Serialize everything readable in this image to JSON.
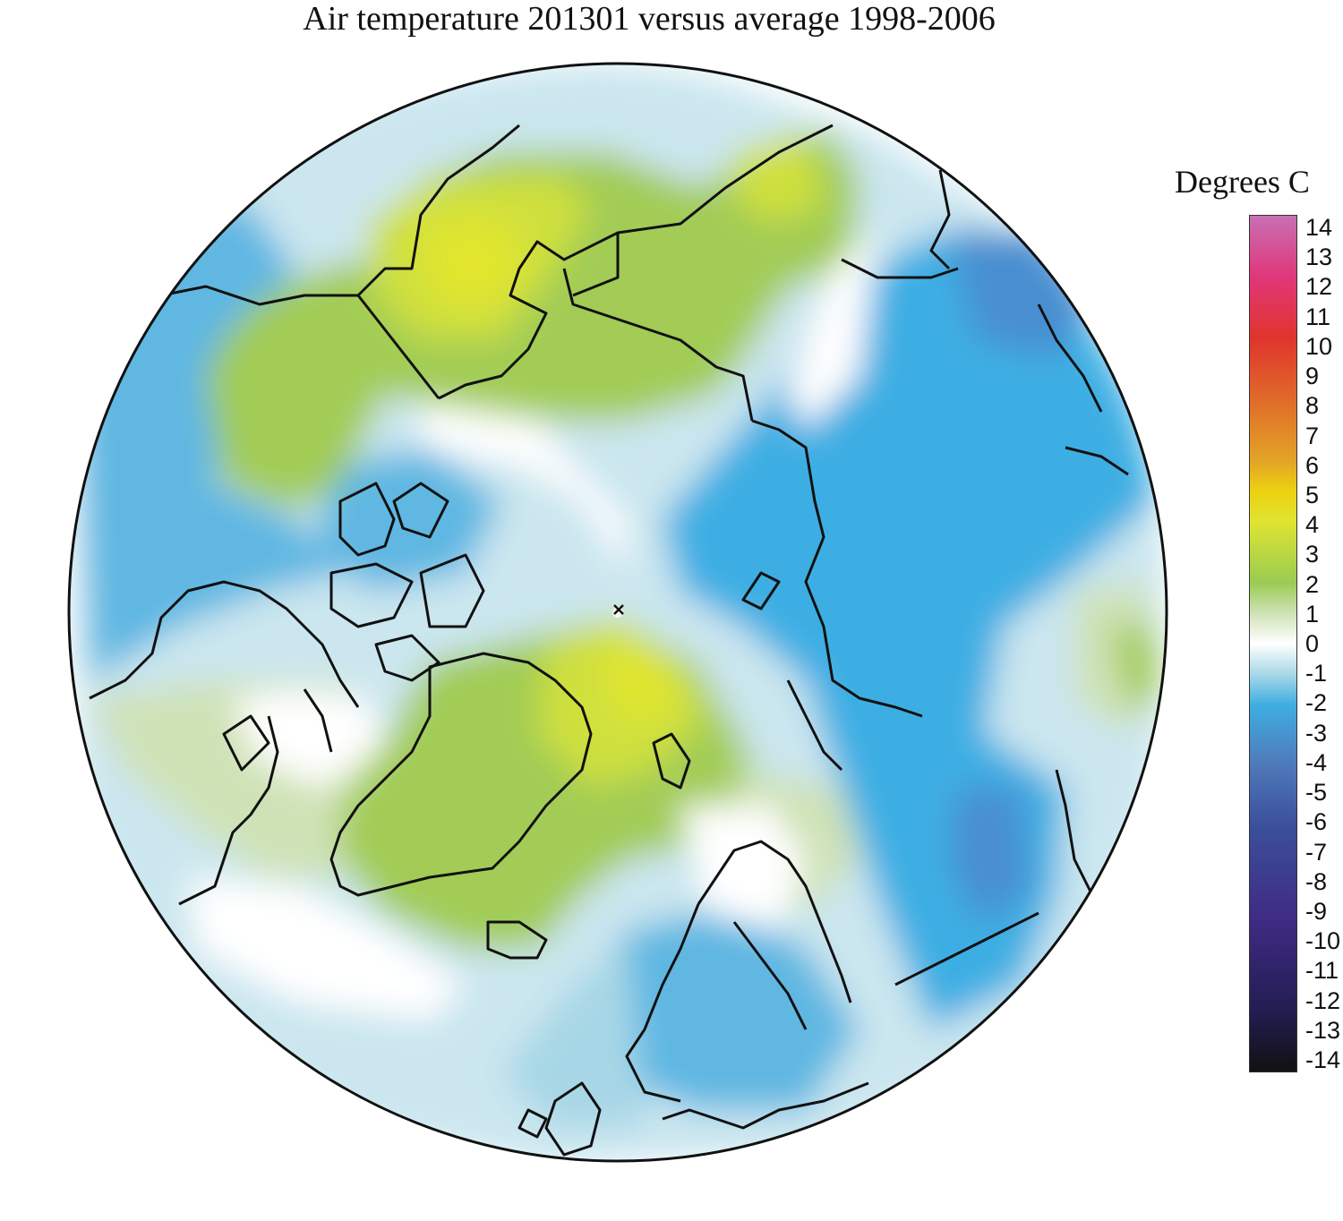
{
  "title": "Air temperature 201301 versus average 1998-2006",
  "legend": {
    "title": "Degrees C",
    "ticks": [
      "14",
      "13",
      "12",
      "11",
      "10",
      "9",
      "8",
      "7",
      "6",
      "5",
      "4",
      "3",
      "2",
      "1",
      "0",
      "-1",
      "-2",
      "-3",
      "-4",
      "-5",
      "-6",
      "-7",
      "-8",
      "-9",
      "-10",
      "-11",
      "-12",
      "-13",
      "-14"
    ],
    "colors": {
      "14": "#c86fb4",
      "12": "#e0377a",
      "10": "#e0342c",
      "8": "#e06a2a",
      "6": "#e2a327",
      "5": "#ecd10f",
      "4": "#e0e431",
      "2": "#9acb52",
      "1": "#cfe2b6",
      "0": "#ffffff",
      "-1": "#a8d8e7",
      "-2": "#3faee2",
      "-4": "#4f78b9",
      "-6": "#3b4f9a",
      "-9": "#3f2b84",
      "-12": "#231d52",
      "-14": "#111111"
    }
  },
  "map_colors": {
    "background": "#ffffff",
    "anom_pos1": "#cfe2b6",
    "anom_pos2": "#a2cc55",
    "anom_pos3": "#cfe03c",
    "anom_pos4": "#e1e52f",
    "anom_neg1": "#cbe6ef",
    "anom_neg1b": "#a7d7e6",
    "anom_neg2": "#5fb7e2",
    "anom_neg2b": "#3caee3",
    "anom_neg3": "#4a8ed0",
    "coast": "#111111"
  }
}
